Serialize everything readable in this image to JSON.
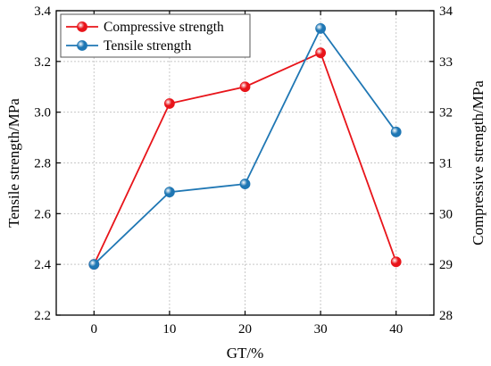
{
  "chart_data": {
    "type": "line",
    "x": [
      0,
      10,
      20,
      30,
      40
    ],
    "xlabel": "GT/%",
    "ylabel_left": "Tensile strength/MPa",
    "ylabel_right": "Compressive strength/MPa",
    "xlim": [
      -5,
      45
    ],
    "ylim_left": [
      2.2,
      3.4
    ],
    "ylim_right": [
      28,
      34
    ],
    "xticks": [
      "0",
      "10",
      "20",
      "30",
      "40"
    ],
    "yticks_left": [
      "2.2",
      "2.4",
      "2.6",
      "2.8",
      "3.0",
      "3.2",
      "3.4"
    ],
    "yticks_right": [
      "28",
      "29",
      "30",
      "31",
      "32",
      "33",
      "34"
    ],
    "grid": true,
    "legend_position": "top-left",
    "series": [
      {
        "name": "Compressive strength",
        "axis": "right",
        "color": "#e8141a",
        "values": [
          29.0,
          32.17,
          32.5,
          33.17,
          29.05
        ]
      },
      {
        "name": "Tensile strength",
        "axis": "left",
        "color": "#1f77b4",
        "values": [
          2.4,
          2.685,
          2.717,
          3.33,
          2.922
        ]
      }
    ]
  }
}
